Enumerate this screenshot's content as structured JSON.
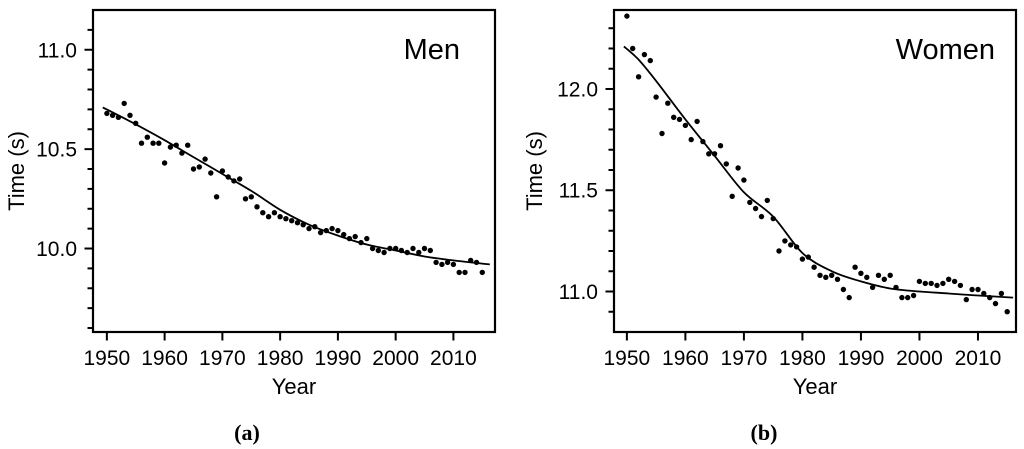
{
  "chart_data": [
    {
      "type": "scatter",
      "panel_id": "a",
      "caption": "(a)",
      "series_label": "Men",
      "xlabel": "Year",
      "ylabel": "Time (s)",
      "xlim": [
        1947.6,
        2017.2
      ],
      "ylim": [
        9.58,
        11.2
      ],
      "xticks": [
        1950,
        1960,
        1970,
        1980,
        1990,
        2000,
        2010
      ],
      "yticks": [
        10.0,
        10.5,
        11.0
      ],
      "y_minor_step": 0.1,
      "grid": false,
      "legend": "none",
      "point_color": "#000000",
      "line_color": "#000000",
      "years": [
        1950,
        1951,
        1952,
        1953,
        1954,
        1955,
        1956,
        1957,
        1958,
        1959,
        1960,
        1961,
        1962,
        1963,
        1964,
        1965,
        1966,
        1967,
        1968,
        1969,
        1970,
        1971,
        1972,
        1973,
        1974,
        1975,
        1976,
        1977,
        1978,
        1979,
        1980,
        1981,
        1982,
        1983,
        1984,
        1985,
        1986,
        1987,
        1988,
        1989,
        1990,
        1991,
        1992,
        1993,
        1994,
        1995,
        1996,
        1997,
        1998,
        1999,
        2000,
        2001,
        2002,
        2003,
        2004,
        2005,
        2006,
        2007,
        2008,
        2009,
        2010,
        2011,
        2012,
        2013,
        2014,
        2015
      ],
      "values": [
        10.68,
        10.67,
        10.66,
        10.73,
        10.67,
        10.63,
        10.53,
        10.56,
        10.53,
        10.53,
        10.43,
        10.51,
        10.52,
        10.48,
        10.52,
        10.4,
        10.41,
        10.45,
        10.38,
        10.26,
        10.39,
        10.36,
        10.34,
        10.35,
        10.25,
        10.26,
        10.21,
        10.18,
        10.16,
        10.18,
        10.16,
        10.15,
        10.14,
        10.13,
        10.12,
        10.1,
        10.11,
        10.08,
        10.09,
        10.1,
        10.09,
        10.07,
        10.05,
        10.06,
        10.03,
        10.05,
        10.0,
        9.99,
        9.98,
        10.0,
        10.0,
        9.99,
        9.98,
        10.0,
        9.98,
        10.0,
        9.99,
        9.93,
        9.92,
        9.93,
        9.92,
        9.88,
        9.88,
        9.94,
        9.93,
        9.88
      ],
      "fit_curve": {
        "x": [
          1949.3,
          1955,
          1960,
          1965,
          1970,
          1975,
          1980,
          1985,
          1990,
          1995,
          2000,
          2005,
          2010,
          2016.3
        ],
        "y": [
          10.71,
          10.625,
          10.545,
          10.46,
          10.375,
          10.29,
          10.195,
          10.12,
          10.065,
          10.02,
          9.99,
          9.96,
          9.94,
          9.92
        ]
      }
    },
    {
      "type": "scatter",
      "panel_id": "b",
      "caption": "(b)",
      "series_label": "Women",
      "xlabel": "Year",
      "ylabel": "Time (s)",
      "xlim": [
        1947.8,
        2016.5
      ],
      "ylim": [
        10.8,
        12.39
      ],
      "xticks": [
        1950,
        1960,
        1970,
        1980,
        1990,
        2000,
        2010
      ],
      "yticks": [
        11.0,
        11.5,
        12.0
      ],
      "y_minor_step": 0.1,
      "grid": false,
      "legend": "none",
      "point_color": "#000000",
      "line_color": "#000000",
      "years": [
        1950,
        1951,
        1952,
        1953,
        1954,
        1955,
        1956,
        1957,
        1958,
        1959,
        1960,
        1961,
        1962,
        1963,
        1964,
        1965,
        1966,
        1967,
        1968,
        1969,
        1970,
        1971,
        1972,
        1973,
        1974,
        1975,
        1976,
        1977,
        1978,
        1979,
        1980,
        1981,
        1982,
        1983,
        1984,
        1985,
        1986,
        1987,
        1988,
        1989,
        1990,
        1991,
        1992,
        1993,
        1994,
        1995,
        1996,
        1997,
        1998,
        1999,
        2000,
        2001,
        2002,
        2003,
        2004,
        2005,
        2006,
        2007,
        2008,
        2009,
        2010,
        2011,
        2012,
        2013,
        2014,
        2015
      ],
      "values": [
        12.36,
        12.2,
        12.06,
        12.17,
        12.14,
        11.96,
        11.78,
        11.93,
        11.86,
        11.85,
        11.82,
        11.75,
        11.84,
        11.74,
        11.68,
        11.68,
        11.72,
        11.63,
        11.47,
        11.61,
        11.55,
        11.44,
        11.41,
        11.37,
        11.45,
        11.36,
        11.2,
        11.25,
        11.23,
        11.22,
        11.16,
        11.17,
        11.12,
        11.08,
        11.07,
        11.08,
        11.06,
        11.01,
        10.97,
        11.12,
        11.09,
        11.07,
        11.02,
        11.08,
        11.06,
        11.08,
        11.02,
        10.97,
        10.97,
        10.98,
        11.05,
        11.04,
        11.04,
        11.03,
        11.04,
        11.06,
        11.05,
        11.03,
        10.96,
        11.01,
        11.01,
        10.99,
        10.97,
        10.94,
        10.99,
        10.9
      ],
      "fit_curve": {
        "x": [
          1949.5,
          1952,
          1955,
          1960,
          1965,
          1970,
          1975,
          1980,
          1985,
          1990,
          1995,
          2000,
          2005,
          2010,
          2016
        ],
        "y": [
          12.21,
          12.145,
          12.04,
          11.85,
          11.67,
          11.49,
          11.37,
          11.19,
          11.1,
          11.05,
          11.015,
          11.0,
          10.99,
          10.98,
          10.97
        ]
      }
    }
  ]
}
